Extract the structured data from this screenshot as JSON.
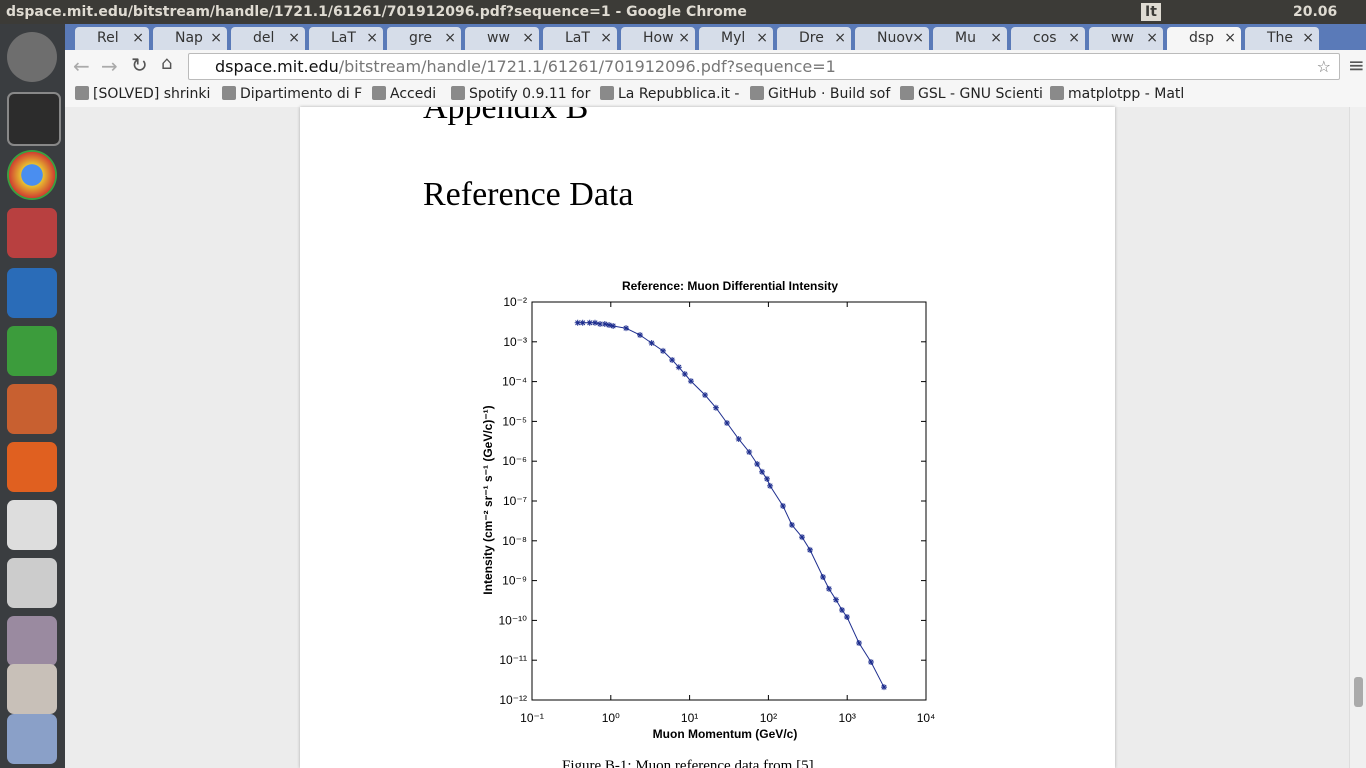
{
  "window_title": "dspace.mit.edu/bitstream/handle/1721.1/61261/701912096.pdf?sequence=1 - Google Chrome",
  "system_tray": {
    "keyboard": "It",
    "clock": "20.06"
  },
  "tabs": [
    "Rel",
    "Nap",
    "del",
    "LaT",
    "gre",
    "ww",
    "LaT",
    "How",
    "Myl",
    "Dre",
    "Nuov",
    "Mu",
    "cos",
    "ww",
    "dsp",
    "The"
  ],
  "address_bar": {
    "host": "dspace.mit.edu",
    "path": "/bitstream/handle/1721.1/61261/701912096.pdf?sequence=1"
  },
  "bookmarks": [
    "[SOLVED] shrinki",
    "Dipartimento di F",
    "Accedi",
    "Spotify 0.9.11 for",
    "La Repubblica.it -",
    "GitHub · Build sof",
    "GSL - GNU Scienti",
    "matplotpp - Matl"
  ],
  "document": {
    "heading_partial": "Appendix B",
    "title": "Reference Data",
    "caption": "Figure B-1: Muon reference data from [5]."
  },
  "chart_data": {
    "type": "line",
    "marker": "*",
    "color": "#1f2f8f",
    "title": "Reference: Muon Differential Intensity",
    "x_label": "Muon Momentum (GeV/c)",
    "y_label": "Intensity (cm⁻² sr⁻¹ s⁻¹ (GeV/c)⁻¹)",
    "x_scale": "log",
    "y_scale": "log",
    "xlim": [
      0.1,
      10000
    ],
    "xticks": [
      {
        "value": 0.1,
        "label": "10⁻¹"
      },
      {
        "value": 1,
        "label": "10⁰"
      },
      {
        "value": 10,
        "label": "10¹"
      },
      {
        "value": 100,
        "label": "10²"
      },
      {
        "value": 1000,
        "label": "10³"
      },
      {
        "value": 10000,
        "label": "10⁴"
      }
    ],
    "ylim": [
      1e-12,
      0.01
    ],
    "yticks": [
      {
        "value": 0.01,
        "label": "10⁻²"
      },
      {
        "value": 0.001,
        "label": "10⁻³"
      },
      {
        "value": 0.0001,
        "label": "10⁻⁴"
      },
      {
        "value": 1e-05,
        "label": "10⁻⁵"
      },
      {
        "value": 1e-06,
        "label": "10⁻⁶"
      },
      {
        "value": 1e-07,
        "label": "10⁻⁷"
      },
      {
        "value": 1e-08,
        "label": "10⁻⁸"
      },
      {
        "value": 1e-09,
        "label": "10⁻⁹"
      },
      {
        "value": 1e-10,
        "label": "10⁻¹⁰"
      },
      {
        "value": 1e-11,
        "label": "10⁻¹¹"
      },
      {
        "value": 1e-12,
        "label": "10⁻¹²"
      }
    ],
    "x": [
      0.38,
      0.44,
      0.54,
      0.63,
      0.73,
      0.84,
      0.95,
      1.07,
      1.56,
      2.35,
      3.3,
      4.6,
      6.0,
      7.3,
      8.7,
      10.4,
      15.7,
      21.6,
      29.8,
      42,
      57,
      72,
      83,
      96,
      105,
      153,
      199,
      267,
      337,
      493,
      587,
      721,
      859,
      993,
      1413,
      2004,
      2931
    ],
    "series": [
      {
        "name": "Muon differential intensity",
        "values": [
          0.003,
          0.003,
          0.003,
          0.003,
          0.0028,
          0.0028,
          0.00264,
          0.0025,
          0.0022,
          0.00148,
          0.00093,
          0.00059,
          0.00035,
          0.00023,
          0.000155,
          0.000103,
          4.6e-05,
          2.2e-05,
          9.1e-06,
          3.6e-06,
          1.7e-06,
          8.5e-07,
          5.4e-07,
          3.6e-07,
          2.4e-07,
          7.5e-08,
          2.5e-08,
          1.24e-08,
          5.9e-09,
          1.23e-09,
          6.2e-10,
          3.3e-10,
          1.82e-10,
          1.22e-10,
          2.7e-11,
          9e-12,
          2.1e-12
        ]
      }
    ]
  }
}
